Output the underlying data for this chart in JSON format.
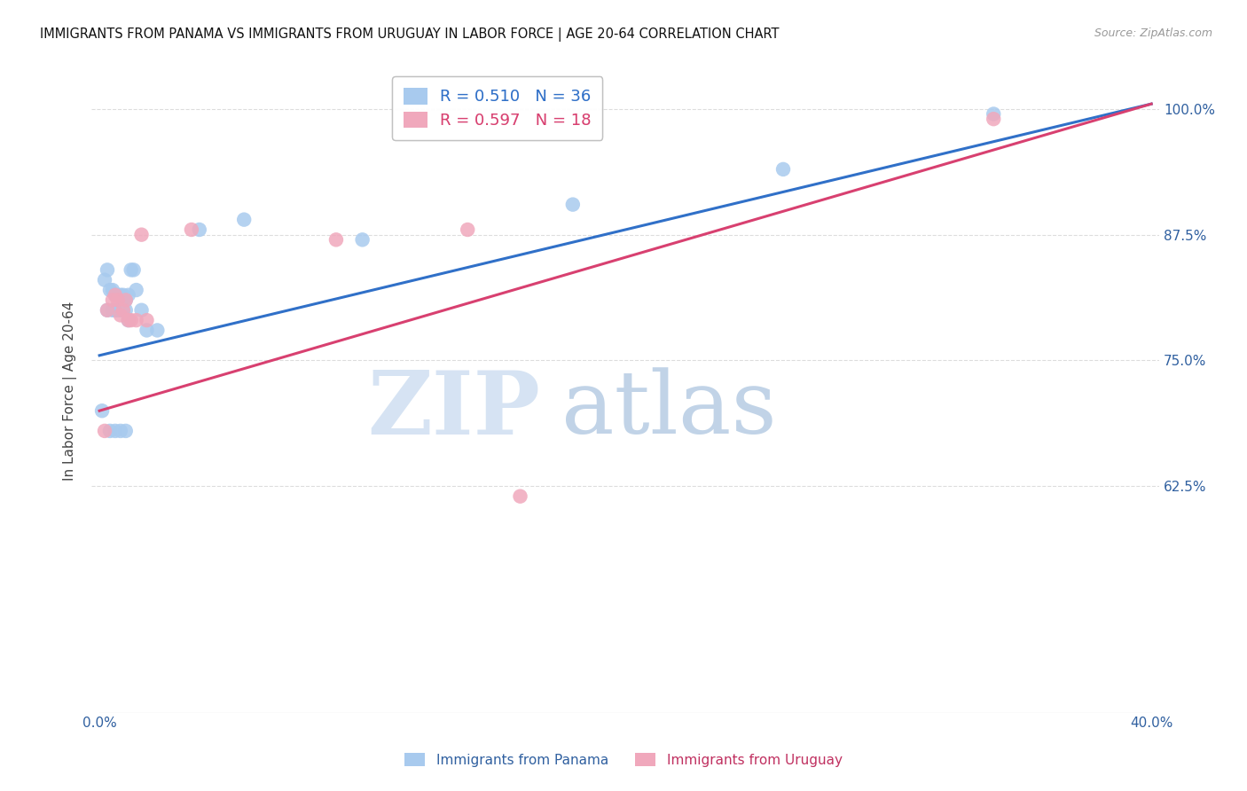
{
  "title": "IMMIGRANTS FROM PANAMA VS IMMIGRANTS FROM URUGUAY IN LABOR FORCE | AGE 20-64 CORRELATION CHART",
  "source": "Source: ZipAtlas.com",
  "ylabel": "In Labor Force | Age 20-64",
  "xlim": [
    -0.003,
    0.403
  ],
  "ylim": [
    0.4,
    1.04
  ],
  "ytick_positions": [
    0.625,
    0.75,
    0.875,
    1.0
  ],
  "ytick_labels": [
    "62.5%",
    "75.0%",
    "87.5%",
    "100.0%"
  ],
  "xtick_positions": [
    0.0,
    0.08,
    0.16,
    0.24,
    0.32,
    0.4
  ],
  "xtick_labels": [
    "0.0%",
    "",
    "",
    "",
    "",
    "40.0%"
  ],
  "panama_R": 0.51,
  "panama_N": 36,
  "uruguay_R": 0.597,
  "uruguay_N": 18,
  "panama_color": "#A8CAEE",
  "uruguay_color": "#F0A8BC",
  "panama_line_color": "#3070C8",
  "uruguay_line_color": "#D84070",
  "panama_x": [
    0.001,
    0.002,
    0.003,
    0.003,
    0.004,
    0.005,
    0.005,
    0.006,
    0.006,
    0.007,
    0.007,
    0.008,
    0.008,
    0.009,
    0.009,
    0.009,
    0.01,
    0.01,
    0.011,
    0.011,
    0.012,
    0.013,
    0.014,
    0.016,
    0.018,
    0.022,
    0.038,
    0.055,
    0.1,
    0.18,
    0.26,
    0.34,
    0.004,
    0.006,
    0.008,
    0.01
  ],
  "panama_y": [
    0.7,
    0.83,
    0.84,
    0.8,
    0.82,
    0.82,
    0.8,
    0.815,
    0.8,
    0.815,
    0.8,
    0.815,
    0.8,
    0.815,
    0.81,
    0.8,
    0.81,
    0.8,
    0.815,
    0.79,
    0.84,
    0.84,
    0.82,
    0.8,
    0.78,
    0.78,
    0.88,
    0.89,
    0.87,
    0.905,
    0.94,
    0.995,
    0.68,
    0.68,
    0.68,
    0.68
  ],
  "uruguay_x": [
    0.002,
    0.003,
    0.005,
    0.006,
    0.007,
    0.008,
    0.009,
    0.01,
    0.011,
    0.012,
    0.014,
    0.016,
    0.018,
    0.035,
    0.09,
    0.14,
    0.16,
    0.34
  ],
  "uruguay_y": [
    0.68,
    0.8,
    0.81,
    0.815,
    0.81,
    0.795,
    0.8,
    0.81,
    0.79,
    0.79,
    0.79,
    0.875,
    0.79,
    0.88,
    0.87,
    0.88,
    0.615,
    0.99
  ],
  "panama_line_x0": 0.0,
  "panama_line_y0": 0.755,
  "panama_line_x1": 0.4,
  "panama_line_y1": 1.005,
  "uruguay_line_x0": 0.0,
  "uruguay_line_y0": 0.7,
  "uruguay_line_x1": 0.4,
  "uruguay_line_y1": 1.005,
  "watermark_zip": "ZIP",
  "watermark_atlas": "atlas",
  "background_color": "#FFFFFF",
  "grid_color": "#DDDDDD",
  "title_color": "#111111",
  "source_color": "#999999",
  "axis_label_color": "#444444",
  "tick_color": "#3060A0"
}
